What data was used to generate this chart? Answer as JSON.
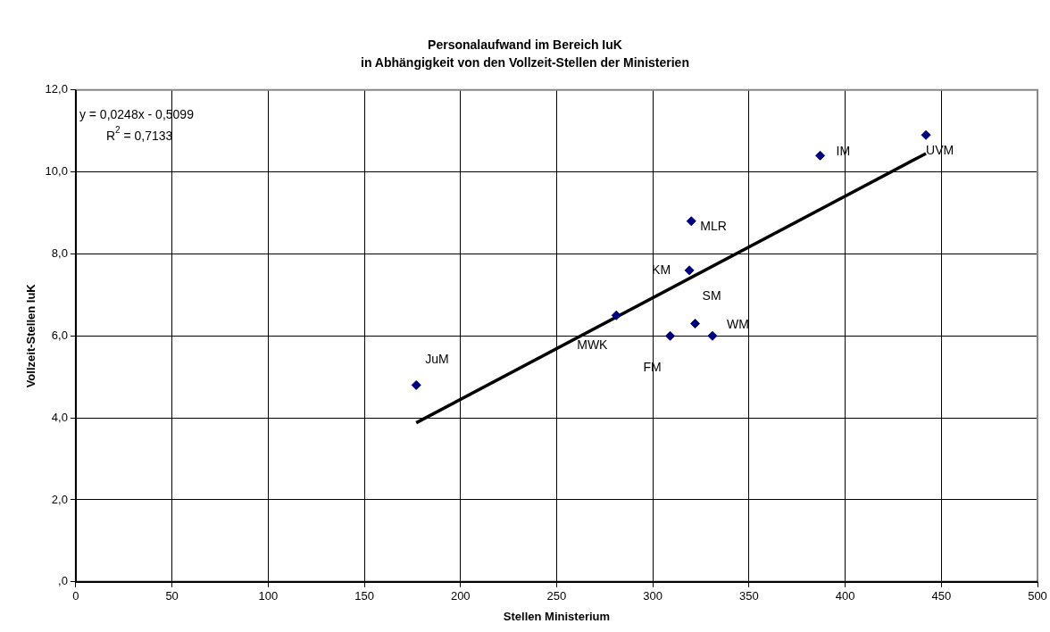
{
  "chart_data": {
    "type": "scatter",
    "title": "Personalaufwand im Bereich IuK\nin Abhängigkeit von den Vollzeit-Stellen der Ministerien",
    "xlabel": "Stellen Ministerium",
    "ylabel": "Vollzeit-Stellen IuK",
    "xlim": [
      0,
      500
    ],
    "xticks": [
      0,
      50,
      100,
      150,
      200,
      250,
      300,
      350,
      400,
      450,
      500
    ],
    "ylim": [
      0,
      12
    ],
    "yticks": [
      {
        "value": 0,
        "label": ",0"
      },
      {
        "value": 2,
        "label": "2,0"
      },
      {
        "value": 4,
        "label": "4,0"
      },
      {
        "value": 6,
        "label": "6,0"
      },
      {
        "value": 8,
        "label": "8,0"
      },
      {
        "value": 10,
        "label": "10,0"
      },
      {
        "value": 12,
        "label": "12,0"
      }
    ],
    "grid": true,
    "legend": false,
    "marker": "diamond",
    "series": [
      {
        "type": "scatter",
        "color": "#000080",
        "x": [
          177,
          281,
          309,
          319,
          320,
          322,
          331,
          387,
          442
        ],
        "values": [
          4.8,
          6.5,
          6.0,
          7.6,
          8.8,
          6.3,
          6.0,
          10.4,
          10.9
        ]
      },
      {
        "type": "line",
        "color": "#000000",
        "x": [
          177,
          442
        ],
        "values": [
          3.88,
          10.45
        ],
        "marker": "none",
        "line_style": "solid"
      }
    ],
    "annotations": [
      "y = 0,0248x - 0,5099\nR$^{2}$ = 0,7133",
      {
        "text": "JuM",
        "x": 177,
        "y": 4.8
      },
      {
        "text": "MWK",
        "x": 281,
        "y": 6.5
      },
      {
        "text": "FM",
        "x": 309,
        "y": 6.0
      },
      {
        "text": "KM",
        "x": 319,
        "y": 7.6
      },
      {
        "text": "MLR",
        "x": 320,
        "y": 8.8
      },
      {
        "text": "SM",
        "x": 322,
        "y": 6.3
      },
      {
        "text": "WM",
        "x": 331,
        "y": 6.0
      },
      {
        "text": "IM",
        "x": 387,
        "y": 10.4
      },
      {
        "text": "UVM",
        "x": 442,
        "y": 10.9
      }
    ]
  }
}
